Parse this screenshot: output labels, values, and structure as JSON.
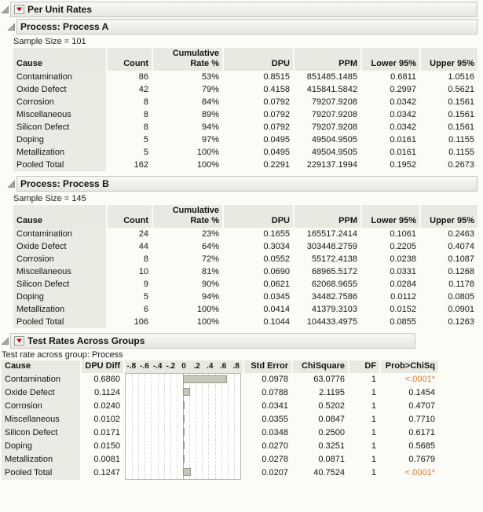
{
  "colors": {
    "accent_red": "#c00000",
    "significant_orange": "#e07d22",
    "bar_fill": "#c6c6b9",
    "bar_border": "#97978c",
    "header_bg": "#e9e9e1",
    "row_label_bg": "#ebebe3"
  },
  "root_header": {
    "title": "Per Unit Rates"
  },
  "process_columns": {
    "cause": "Cause",
    "count": "Count",
    "cum_line1": "Cumulative",
    "cum_line2": "Rate %",
    "dpu": "DPU",
    "ppm": "PPM",
    "lower": "Lower 95%",
    "upper": "Upper 95%"
  },
  "process_a": {
    "title": "Process: Process A",
    "sample_size": "Sample Size = 101",
    "rows": [
      {
        "cause": "Contamination",
        "count": "86",
        "rate": "53%",
        "dpu": "0.8515",
        "ppm": "851485.1485",
        "lower": "0.6811",
        "upper": "1.0516"
      },
      {
        "cause": "Oxide Defect",
        "count": "42",
        "rate": "79%",
        "dpu": "0.4158",
        "ppm": "415841.5842",
        "lower": "0.2997",
        "upper": "0.5621"
      },
      {
        "cause": "Corrosion",
        "count": "8",
        "rate": "84%",
        "dpu": "0.0792",
        "ppm": "79207.9208",
        "lower": "0.0342",
        "upper": "0.1561"
      },
      {
        "cause": "Miscellaneous",
        "count": "8",
        "rate": "89%",
        "dpu": "0.0792",
        "ppm": "79207.9208",
        "lower": "0.0342",
        "upper": "0.1561"
      },
      {
        "cause": "Silicon Defect",
        "count": "8",
        "rate": "94%",
        "dpu": "0.0792",
        "ppm": "79207.9208",
        "lower": "0.0342",
        "upper": "0.1561"
      },
      {
        "cause": "Doping",
        "count": "5",
        "rate": "97%",
        "dpu": "0.0495",
        "ppm": "49504.9505",
        "lower": "0.0161",
        "upper": "0.1155"
      },
      {
        "cause": "Metallization",
        "count": "5",
        "rate": "100%",
        "dpu": "0.0495",
        "ppm": "49504.9505",
        "lower": "0.0161",
        "upper": "0.1155"
      },
      {
        "cause": "Pooled Total",
        "count": "162",
        "rate": "100%",
        "dpu": "0.2291",
        "ppm": "229137.1994",
        "lower": "0.1952",
        "upper": "0.2673"
      }
    ]
  },
  "process_b": {
    "title": "Process: Process B",
    "sample_size": "Sample Size = 145",
    "rows": [
      {
        "cause": "Contamination",
        "count": "24",
        "rate": "23%",
        "dpu": "0.1655",
        "ppm": "165517.2414",
        "lower": "0.1061",
        "upper": "0.2463"
      },
      {
        "cause": "Oxide Defect",
        "count": "44",
        "rate": "64%",
        "dpu": "0.3034",
        "ppm": "303448.2759",
        "lower": "0.2205",
        "upper": "0.4074"
      },
      {
        "cause": "Corrosion",
        "count": "8",
        "rate": "72%",
        "dpu": "0.0552",
        "ppm": "55172.4138",
        "lower": "0.0238",
        "upper": "0.1087"
      },
      {
        "cause": "Miscellaneous",
        "count": "10",
        "rate": "81%",
        "dpu": "0.0690",
        "ppm": "68965.5172",
        "lower": "0.0331",
        "upper": "0.1268"
      },
      {
        "cause": "Silicon Defect",
        "count": "9",
        "rate": "90%",
        "dpu": "0.0621",
        "ppm": "62068.9655",
        "lower": "0.0284",
        "upper": "0.1178"
      },
      {
        "cause": "Doping",
        "count": "5",
        "rate": "94%",
        "dpu": "0.0345",
        "ppm": "34482.7586",
        "lower": "0.0112",
        "upper": "0.0805"
      },
      {
        "cause": "Metallization",
        "count": "6",
        "rate": "100%",
        "dpu": "0.0414",
        "ppm": "41379.3103",
        "lower": "0.0152",
        "upper": "0.0901"
      },
      {
        "cause": "Pooled Total",
        "count": "106",
        "rate": "100%",
        "dpu": "0.1044",
        "ppm": "104433.4975",
        "lower": "0.0855",
        "upper": "0.1263"
      }
    ]
  },
  "test_section": {
    "title": "Test Rates Across Groups",
    "subtitle": "Test rate across group: Process",
    "columns": {
      "cause": "Cause",
      "dpu_diff": "DPU Diff",
      "std_error": "Std Error",
      "chisquare": "ChiSquare",
      "df": "DF",
      "prob": "Prob>ChiSq"
    },
    "axis": {
      "min": -0.9,
      "max": 0.9,
      "grid_step": 0.1,
      "ticks": [
        {
          "value": -0.8,
          "label": "-.8"
        },
        {
          "value": -0.6,
          "label": "-.6"
        },
        {
          "value": -0.4,
          "label": "-.4"
        },
        {
          "value": -0.2,
          "label": "-.2"
        },
        {
          "value": 0,
          "label": "0"
        },
        {
          "value": 0.2,
          "label": ".2"
        },
        {
          "value": 0.4,
          "label": ".4"
        },
        {
          "value": 0.6,
          "label": ".6"
        },
        {
          "value": 0.8,
          "label": ".8"
        }
      ]
    },
    "rows": [
      {
        "cause": "Contamination",
        "dpu_diff": "0.6860",
        "dpu_diff_value": 0.686,
        "std_error": "0.0978",
        "chisquare": "63.0776",
        "df": "1",
        "prob": "<.0001*",
        "significant": true
      },
      {
        "cause": "Oxide Defect",
        "dpu_diff": "0.1124",
        "dpu_diff_value": 0.1124,
        "std_error": "0.0788",
        "chisquare": "2.1195",
        "df": "1",
        "prob": "0.1454",
        "significant": false
      },
      {
        "cause": "Corrosion",
        "dpu_diff": "0.0240",
        "dpu_diff_value": 0.024,
        "std_error": "0.0341",
        "chisquare": "0.5202",
        "df": "1",
        "prob": "0.4707",
        "significant": false
      },
      {
        "cause": "Miscellaneous",
        "dpu_diff": "0.0102",
        "dpu_diff_value": 0.0102,
        "std_error": "0.0355",
        "chisquare": "0.0847",
        "df": "1",
        "prob": "0.7710",
        "significant": false
      },
      {
        "cause": "Silicon Defect",
        "dpu_diff": "0.0171",
        "dpu_diff_value": 0.0171,
        "std_error": "0.0348",
        "chisquare": "0.2500",
        "df": "1",
        "prob": "0.6171",
        "significant": false
      },
      {
        "cause": "Doping",
        "dpu_diff": "0.0150",
        "dpu_diff_value": 0.015,
        "std_error": "0.0270",
        "chisquare": "0.3251",
        "df": "1",
        "prob": "0.5685",
        "significant": false
      },
      {
        "cause": "Metallization",
        "dpu_diff": "0.0081",
        "dpu_diff_value": 0.0081,
        "std_error": "0.0278",
        "chisquare": "0.0871",
        "df": "1",
        "prob": "0.7679",
        "significant": false
      },
      {
        "cause": "Pooled Total",
        "dpu_diff": "0.1247",
        "dpu_diff_value": 0.1247,
        "std_error": "0.0207",
        "chisquare": "40.7524",
        "df": "1",
        "prob": "<.0001*",
        "significant": true
      }
    ]
  },
  "chart_data": {
    "type": "bar",
    "orientation": "horizontal",
    "title": "DPU Diff",
    "categories": [
      "Contamination",
      "Oxide Defect",
      "Corrosion",
      "Miscellaneous",
      "Silicon Defect",
      "Doping",
      "Metallization",
      "Pooled Total"
    ],
    "values": [
      0.686,
      0.1124,
      0.024,
      0.0102,
      0.0171,
      0.015,
      0.0081,
      0.1247
    ],
    "xlim": [
      -0.9,
      0.9
    ],
    "grid": true,
    "tick_labels": [
      "-.8",
      "-.6",
      "-.4",
      "-.2",
      "0",
      ".2",
      ".4",
      ".6",
      ".8"
    ]
  }
}
